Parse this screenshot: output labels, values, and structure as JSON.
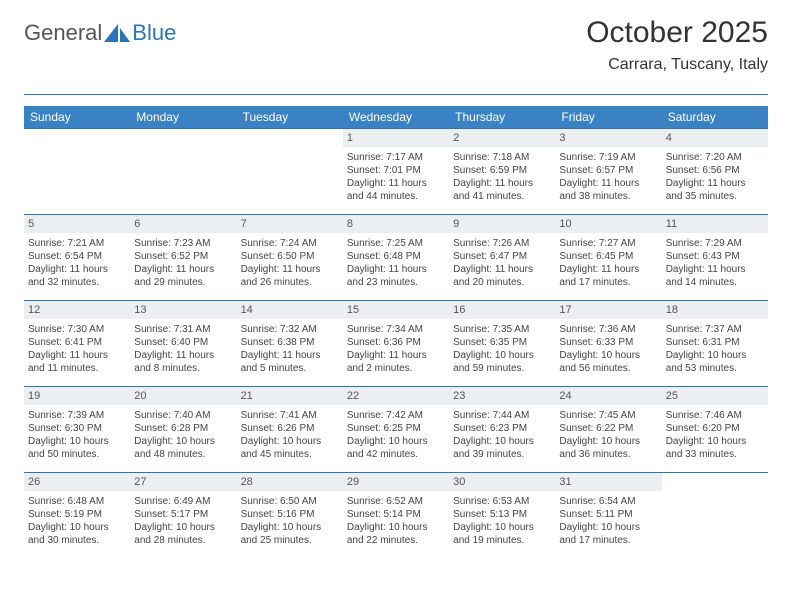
{
  "logo": {
    "word1": "General",
    "word2": "Blue"
  },
  "header": {
    "title": "October 2025",
    "location": "Carrara, Tuscany, Italy"
  },
  "colors": {
    "accent": "#3a82c4",
    "rule": "#2a74b8",
    "daybg": "#ebeff2",
    "text": "#444444"
  },
  "daynames": [
    "Sunday",
    "Monday",
    "Tuesday",
    "Wednesday",
    "Thursday",
    "Friday",
    "Saturday"
  ],
  "weeks": [
    [
      {
        "empty": true
      },
      {
        "empty": true
      },
      {
        "empty": true
      },
      {
        "n": "1",
        "sunrise": "7:17 AM",
        "sunset": "7:01 PM",
        "dl": "11 hours and 44 minutes."
      },
      {
        "n": "2",
        "sunrise": "7:18 AM",
        "sunset": "6:59 PM",
        "dl": "11 hours and 41 minutes."
      },
      {
        "n": "3",
        "sunrise": "7:19 AM",
        "sunset": "6:57 PM",
        "dl": "11 hours and 38 minutes."
      },
      {
        "n": "4",
        "sunrise": "7:20 AM",
        "sunset": "6:56 PM",
        "dl": "11 hours and 35 minutes."
      }
    ],
    [
      {
        "n": "5",
        "sunrise": "7:21 AM",
        "sunset": "6:54 PM",
        "dl": "11 hours and 32 minutes."
      },
      {
        "n": "6",
        "sunrise": "7:23 AM",
        "sunset": "6:52 PM",
        "dl": "11 hours and 29 minutes."
      },
      {
        "n": "7",
        "sunrise": "7:24 AM",
        "sunset": "6:50 PM",
        "dl": "11 hours and 26 minutes."
      },
      {
        "n": "8",
        "sunrise": "7:25 AM",
        "sunset": "6:48 PM",
        "dl": "11 hours and 23 minutes."
      },
      {
        "n": "9",
        "sunrise": "7:26 AM",
        "sunset": "6:47 PM",
        "dl": "11 hours and 20 minutes."
      },
      {
        "n": "10",
        "sunrise": "7:27 AM",
        "sunset": "6:45 PM",
        "dl": "11 hours and 17 minutes."
      },
      {
        "n": "11",
        "sunrise": "7:29 AM",
        "sunset": "6:43 PM",
        "dl": "11 hours and 14 minutes."
      }
    ],
    [
      {
        "n": "12",
        "sunrise": "7:30 AM",
        "sunset": "6:41 PM",
        "dl": "11 hours and 11 minutes."
      },
      {
        "n": "13",
        "sunrise": "7:31 AM",
        "sunset": "6:40 PM",
        "dl": "11 hours and 8 minutes."
      },
      {
        "n": "14",
        "sunrise": "7:32 AM",
        "sunset": "6:38 PM",
        "dl": "11 hours and 5 minutes."
      },
      {
        "n": "15",
        "sunrise": "7:34 AM",
        "sunset": "6:36 PM",
        "dl": "11 hours and 2 minutes."
      },
      {
        "n": "16",
        "sunrise": "7:35 AM",
        "sunset": "6:35 PM",
        "dl": "10 hours and 59 minutes."
      },
      {
        "n": "17",
        "sunrise": "7:36 AM",
        "sunset": "6:33 PM",
        "dl": "10 hours and 56 minutes."
      },
      {
        "n": "18",
        "sunrise": "7:37 AM",
        "sunset": "6:31 PM",
        "dl": "10 hours and 53 minutes."
      }
    ],
    [
      {
        "n": "19",
        "sunrise": "7:39 AM",
        "sunset": "6:30 PM",
        "dl": "10 hours and 50 minutes."
      },
      {
        "n": "20",
        "sunrise": "7:40 AM",
        "sunset": "6:28 PM",
        "dl": "10 hours and 48 minutes."
      },
      {
        "n": "21",
        "sunrise": "7:41 AM",
        "sunset": "6:26 PM",
        "dl": "10 hours and 45 minutes."
      },
      {
        "n": "22",
        "sunrise": "7:42 AM",
        "sunset": "6:25 PM",
        "dl": "10 hours and 42 minutes."
      },
      {
        "n": "23",
        "sunrise": "7:44 AM",
        "sunset": "6:23 PM",
        "dl": "10 hours and 39 minutes."
      },
      {
        "n": "24",
        "sunrise": "7:45 AM",
        "sunset": "6:22 PM",
        "dl": "10 hours and 36 minutes."
      },
      {
        "n": "25",
        "sunrise": "7:46 AM",
        "sunset": "6:20 PM",
        "dl": "10 hours and 33 minutes."
      }
    ],
    [
      {
        "n": "26",
        "sunrise": "6:48 AM",
        "sunset": "5:19 PM",
        "dl": "10 hours and 30 minutes."
      },
      {
        "n": "27",
        "sunrise": "6:49 AM",
        "sunset": "5:17 PM",
        "dl": "10 hours and 28 minutes."
      },
      {
        "n": "28",
        "sunrise": "6:50 AM",
        "sunset": "5:16 PM",
        "dl": "10 hours and 25 minutes."
      },
      {
        "n": "29",
        "sunrise": "6:52 AM",
        "sunset": "5:14 PM",
        "dl": "10 hours and 22 minutes."
      },
      {
        "n": "30",
        "sunrise": "6:53 AM",
        "sunset": "5:13 PM",
        "dl": "10 hours and 19 minutes."
      },
      {
        "n": "31",
        "sunrise": "6:54 AM",
        "sunset": "5:11 PM",
        "dl": "10 hours and 17 minutes."
      },
      {
        "empty": true
      }
    ]
  ],
  "labels": {
    "sunrise": "Sunrise:",
    "sunset": "Sunset:",
    "daylight": "Daylight:"
  }
}
